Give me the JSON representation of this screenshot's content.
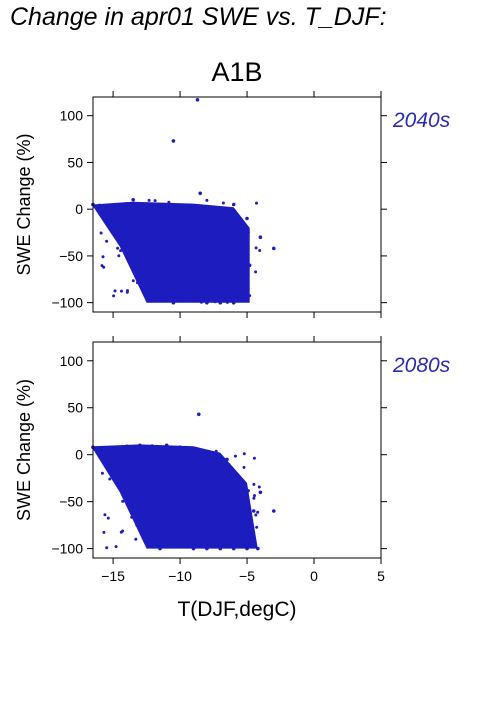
{
  "page_title": "Change in apr01 SWE vs. T_DJF:",
  "chart_data": {
    "type": "scatter",
    "title": "A1B",
    "xlabel": "T(DJF,degC)",
    "ylabel": "SWE Change (%)",
    "xlim": [
      -16.5,
      5
    ],
    "ylim": [
      -110,
      120
    ],
    "x_ticks": [
      -15,
      -10,
      -5,
      0,
      5
    ],
    "y_ticks": [
      100,
      50,
      0,
      -50,
      -100
    ],
    "point_color": "#1c1cbf",
    "label_color": "#2a2ab5",
    "grid": false,
    "panels": [
      {
        "label": "2040s",
        "approx_points": [
          [
            -16.5,
            5
          ],
          [
            -16,
            4
          ],
          [
            -15,
            3
          ],
          [
            -14,
            5
          ],
          [
            -13.5,
            10
          ],
          [
            -13,
            2
          ],
          [
            -12.5,
            0
          ],
          [
            -12,
            -5
          ],
          [
            -11,
            -10
          ],
          [
            -10,
            -20
          ],
          [
            -9,
            -30
          ],
          [
            -8,
            -40
          ],
          [
            -7,
            -50
          ],
          [
            -6,
            -60
          ],
          [
            -5,
            -70
          ],
          [
            -12,
            -20
          ],
          [
            -11,
            -40
          ],
          [
            -10,
            -60
          ],
          [
            -9,
            -80
          ],
          [
            -8,
            -100
          ],
          [
            -7,
            -100
          ],
          [
            -6,
            -100
          ],
          [
            -5,
            -95
          ],
          [
            -13,
            -30
          ],
          [
            -12,
            -55
          ],
          [
            -11.5,
            -75
          ],
          [
            -10.5,
            -100
          ],
          [
            -4.8,
            -60
          ],
          [
            -4,
            -30
          ],
          [
            -3,
            -42
          ],
          [
            -8.7,
            117
          ],
          [
            -10.5,
            73
          ],
          [
            -8.5,
            17
          ],
          [
            -6,
            5
          ],
          [
            -5,
            -10
          ]
        ]
      },
      {
        "label": "2080s",
        "approx_points": [
          [
            -16.5,
            8
          ],
          [
            -16,
            7
          ],
          [
            -15,
            5
          ],
          [
            -14,
            8
          ],
          [
            -13,
            10
          ],
          [
            -12,
            8
          ],
          [
            -11,
            10
          ],
          [
            -10,
            8
          ],
          [
            -9,
            5
          ],
          [
            -8,
            0
          ],
          [
            -7,
            -10
          ],
          [
            -6,
            -20
          ],
          [
            -5,
            -40
          ],
          [
            -4.5,
            -60
          ],
          [
            -4.2,
            -100
          ],
          [
            -13,
            -20
          ],
          [
            -12,
            -40
          ],
          [
            -11,
            -60
          ],
          [
            -10,
            -80
          ],
          [
            -9,
            -100
          ],
          [
            -8,
            -100
          ],
          [
            -7,
            -100
          ],
          [
            -6,
            -100
          ],
          [
            -5,
            -100
          ],
          [
            -12.5,
            -65
          ],
          [
            -11.5,
            -100
          ],
          [
            -13.5,
            -10
          ],
          [
            -4,
            -40
          ],
          [
            -3,
            -60
          ],
          [
            -8.6,
            43
          ],
          [
            -6.5,
            -5
          ],
          [
            -5.5,
            -30
          ]
        ]
      }
    ]
  }
}
